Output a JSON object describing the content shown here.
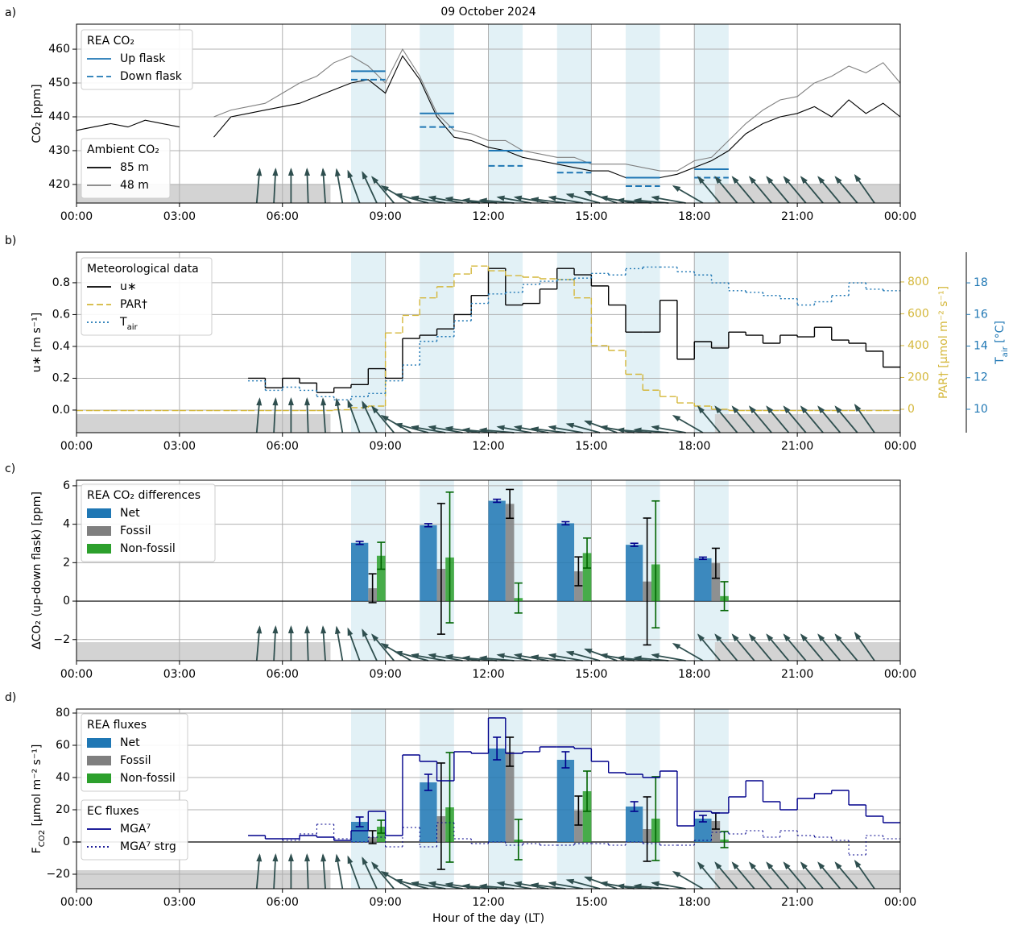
{
  "overlay": {
    "periods": [
      [
        8,
        9
      ],
      [
        10,
        11
      ],
      [
        12,
        13
      ],
      [
        14,
        15
      ],
      [
        16,
        17
      ],
      [
        18,
        19
      ]
    ],
    "night": [
      [
        0,
        7.4
      ],
      [
        18.6,
        24
      ]
    ],
    "wind": {
      "x": [
        5.25,
        5.75,
        6.25,
        6.75,
        7.25,
        7.75,
        8.25,
        8.75,
        9.25,
        9.75,
        10.25,
        10.75,
        11.25,
        11.75,
        12.25,
        12.75,
        13.25,
        13.75,
        14.25,
        14.75,
        15.25,
        15.75,
        16.25,
        16.75,
        17.25,
        17.75,
        18.25,
        18.75,
        19.25,
        19.75,
        20.25,
        20.75,
        21.25,
        21.75,
        22.25,
        22.75,
        23.25
      ],
      "direction": [
        185,
        183,
        180,
        178,
        176,
        170,
        160,
        155,
        140,
        120,
        105,
        100,
        100,
        98,
        95,
        95,
        100,
        100,
        97,
        100,
        105,
        110,
        100,
        95,
        95,
        100,
        120,
        140,
        140,
        140,
        140,
        140,
        140,
        140,
        140,
        140,
        145
      ]
    }
  },
  "chart_data": [
    {
      "type": "line",
      "title": "09 October 2024",
      "label": "a)",
      "ylabel": "CO₂ [ppm]",
      "xlim": [
        0,
        24
      ],
      "xticks": [
        {
          "value": 0,
          "label": "00:00"
        },
        {
          "value": 3,
          "label": "03:00"
        },
        {
          "value": 6,
          "label": "06:00"
        },
        {
          "value": 9,
          "label": "09:00"
        },
        {
          "value": 12,
          "label": "12:00"
        },
        {
          "value": 15,
          "label": "15:00"
        },
        {
          "value": 18,
          "label": "18:00"
        },
        {
          "value": 21,
          "label": "21:00"
        },
        {
          "value": 24,
          "label": "00:00"
        }
      ],
      "ylim": [
        414.5,
        467.4
      ],
      "yticks": [
        420,
        430,
        440,
        450,
        460
      ],
      "grid": true,
      "x": [
        0,
        0.5,
        1,
        1.5,
        2,
        2.5,
        3,
        3.5,
        4,
        4.5,
        5,
        5.5,
        6,
        6.5,
        7,
        7.5,
        8,
        8.5,
        9,
        9.5,
        10,
        10.5,
        11,
        11.5,
        12,
        12.5,
        13,
        13.5,
        14,
        14.5,
        15,
        15.5,
        16,
        16.5,
        17,
        17.5,
        18,
        18.5,
        19,
        19.5,
        20,
        20.5,
        21,
        21.5,
        22,
        22.5,
        23,
        23.5,
        24
      ],
      "flask_legend_title": "REA CO₂",
      "flask_series": [
        {
          "name": "Up flask",
          "color": "#1f77b4",
          "style": "flask",
          "dash": "solid",
          "values": [
            453.5,
            441,
            430,
            426.5,
            422,
            424.5
          ]
        },
        {
          "name": "Down flask",
          "color": "#1f77b4",
          "style": "flask",
          "dash": "dashed",
          "values": [
            451,
            437,
            425.5,
            423.5,
            419.5,
            422
          ]
        }
      ],
      "legend_title": "Ambient CO₂",
      "series": [
        {
          "name": "85 m",
          "color": "#000000",
          "style": "line",
          "values": [
            436,
            437,
            438,
            437,
            439,
            438,
            437,
            null,
            434,
            440,
            441,
            442,
            443,
            444,
            446,
            448,
            450,
            451,
            447,
            458,
            451,
            440,
            434,
            433,
            431,
            430,
            428,
            427,
            426,
            425,
            424,
            424,
            422,
            422,
            422,
            423,
            425,
            427,
            430,
            435,
            438,
            440,
            441,
            443,
            440,
            445,
            441,
            444,
            440
          ]
        },
        {
          "name": "48 m",
          "color": "#808080",
          "style": "line",
          "values": [
            null,
            null,
            null,
            null,
            null,
            null,
            null,
            null,
            440,
            442,
            443,
            444,
            447,
            450,
            452,
            456,
            458,
            455,
            450,
            460,
            452,
            441,
            436,
            435,
            433,
            433,
            430,
            429,
            428,
            428,
            426,
            426,
            426,
            425,
            424,
            424,
            427,
            428,
            433,
            438,
            442,
            445,
            446,
            450,
            452,
            455,
            453,
            456,
            450
          ]
        }
      ]
    },
    {
      "type": "step",
      "label": "b)",
      "ylabel": "u∗ [m s⁻¹]",
      "y2label": "PAR† [µmol m⁻² s⁻¹]",
      "y3label": [
        "T",
        "air",
        " [°C]"
      ],
      "xlim": [
        0,
        24
      ],
      "xticks": [
        {
          "value": 0,
          "label": "00:00"
        },
        {
          "value": 3,
          "label": "03:00"
        },
        {
          "value": 6,
          "label": "06:00"
        },
        {
          "value": 9,
          "label": "09:00"
        },
        {
          "value": 12,
          "label": "12:00"
        },
        {
          "value": 15,
          "label": "15:00"
        },
        {
          "value": 18,
          "label": "18:00"
        },
        {
          "value": 21,
          "label": "21:00"
        },
        {
          "value": 24,
          "label": "00:00"
        }
      ],
      "ylim": [
        -0.142,
        0.992
      ],
      "yticks": [
        {
          "value": 0,
          "label": "0.0"
        },
        0.2,
        0.4,
        0.6,
        0.8
      ],
      "grid": true,
      "y2lim": [
        -147,
        987
      ],
      "y2ticks": [
        0,
        200,
        400,
        600,
        800
      ],
      "y3lim": [
        8.52,
        19.94
      ],
      "y3ticks": [
        10,
        12,
        14,
        16,
        18
      ],
      "legend_title": "Meteorological data",
      "series": [
        {
          "name": "u∗",
          "color": "#000000",
          "style": "step",
          "dash": "solid",
          "axis": "y",
          "bins": [
            5,
            5.5,
            6,
            6.5,
            7,
            7.5,
            8,
            8.5,
            9,
            9.5,
            10,
            10.5,
            11,
            11.5,
            12,
            12.5,
            13,
            13.5,
            14,
            14.5,
            15,
            15.5,
            16,
            16.5,
            17,
            17.5,
            18,
            18.5,
            19,
            19.5,
            20,
            20.5,
            21,
            21.5,
            22,
            22.5,
            23,
            23.5,
            24
          ],
          "values": [
            0.2,
            0.14,
            0.2,
            0.17,
            0.11,
            0.14,
            0.16,
            0.26,
            0.2,
            0.45,
            0.47,
            0.51,
            0.6,
            0.72,
            0.89,
            0.66,
            0.67,
            0.76,
            0.89,
            0.85,
            0.78,
            0.66,
            0.49,
            0.49,
            0.69,
            0.32,
            0.43,
            0.39,
            0.49,
            0.47,
            0.42,
            0.47,
            0.46,
            0.52,
            0.44,
            0.42,
            0.37,
            0.27
          ]
        },
        {
          "name": "PAR†",
          "color": "#d4b73a",
          "style": "step",
          "dash": "dashed",
          "axis": "y2",
          "bins": [
            0,
            0.5,
            1,
            1.5,
            2,
            2.5,
            3,
            3.5,
            4,
            4.5,
            5,
            5.5,
            6,
            6.5,
            7,
            7.5,
            8,
            8.5,
            9,
            9.5,
            10,
            10.5,
            11,
            11.5,
            12,
            12.5,
            13,
            13.5,
            14,
            14.5,
            15,
            15.5,
            16,
            16.5,
            17,
            17.5,
            18,
            18.5,
            19,
            19.5,
            20,
            20.5,
            21,
            21.5,
            22,
            22.5,
            23,
            23.5,
            24
          ],
          "values": [
            -8,
            -8,
            -8,
            -8,
            -8,
            -8,
            -8,
            -8,
            -8,
            -8,
            -8,
            -8,
            -8,
            -8,
            -8,
            -3,
            10,
            20,
            480,
            590,
            700,
            770,
            850,
            900,
            870,
            840,
            830,
            820,
            815,
            700,
            400,
            370,
            220,
            120,
            80,
            40,
            20,
            0,
            -8,
            -8,
            -8,
            -8,
            -8,
            -8,
            -8,
            -8,
            -8,
            -8
          ]
        },
        {
          "name": [
            "T",
            "air"
          ],
          "color": "#1f77b4",
          "style": "step",
          "dash": "dotted",
          "axis": "y3",
          "bins": [
            5,
            5.5,
            6,
            6.5,
            7,
            7.5,
            8,
            8.5,
            9,
            9.5,
            10,
            10.5,
            11,
            11.5,
            12,
            12.5,
            13,
            13.5,
            14,
            14.5,
            15,
            15.5,
            16,
            16.5,
            17,
            17.5,
            18,
            18.5,
            19,
            19.5,
            20,
            20.5,
            21,
            21.5,
            22,
            22.5,
            23,
            23.5,
            24
          ],
          "values": [
            11.8,
            11.2,
            11.4,
            11.2,
            10.8,
            10.6,
            10.8,
            11.0,
            11.8,
            12.8,
            14.3,
            14.6,
            15.6,
            16.7,
            17.3,
            17.4,
            17.9,
            18.1,
            18.2,
            18.3,
            18.6,
            18.5,
            18.9,
            19.0,
            19.0,
            18.7,
            18.5,
            18.0,
            17.5,
            17.4,
            17.2,
            17.0,
            16.6,
            16.8,
            17.2,
            18.0,
            17.6,
            17.5
          ]
        }
      ]
    },
    {
      "type": "bar",
      "label": "c)",
      "ylabel": "ΔCO₂ (up-down flask) [ppm]",
      "xlim": [
        0,
        24
      ],
      "xticks": [
        {
          "value": 0,
          "label": "00:00"
        },
        {
          "value": 3,
          "label": "03:00"
        },
        {
          "value": 6,
          "label": "06:00"
        },
        {
          "value": 9,
          "label": "09:00"
        },
        {
          "value": 12,
          "label": "12:00"
        },
        {
          "value": 15,
          "label": "15:00"
        },
        {
          "value": 18,
          "label": "18:00"
        },
        {
          "value": 21,
          "label": "21:00"
        },
        {
          "value": 24,
          "label": "00:00"
        }
      ],
      "ylim": [
        -3.1,
        6.29
      ],
      "yticks": [
        {
          "value": -2,
          "label": "−2"
        },
        0,
        2,
        4,
        6
      ],
      "grid": true,
      "hline": 0,
      "legend_title": "REA CO₂ differences",
      "series": [
        {
          "name": "Net",
          "color": "#1f77b4",
          "error_color": "#00008b",
          "style": "bar",
          "values": [
            3.03,
            3.95,
            5.22,
            4.05,
            2.93,
            2.23
          ],
          "errors": [
            0.08,
            0.08,
            0.08,
            0.08,
            0.08,
            0.06
          ]
        },
        {
          "name": "Fossil",
          "color": "#7f7f7f",
          "error_color": "#000000",
          "style": "bar",
          "values": [
            0.67,
            1.68,
            5.06,
            1.55,
            1.02,
            1.97
          ],
          "errors": [
            0.75,
            3.4,
            0.75,
            0.75,
            3.3,
            0.78
          ]
        },
        {
          "name": "Non-fossil",
          "color": "#2ca02c",
          "error_color": "#006400",
          "style": "bar",
          "values": [
            2.36,
            2.27,
            0.16,
            2.5,
            1.91,
            0.26
          ],
          "errors": [
            0.7,
            3.4,
            0.78,
            0.78,
            3.3,
            0.75
          ]
        }
      ]
    },
    {
      "type": "bar",
      "label": "d)",
      "ylabel": [
        "F",
        "CO2",
        " [µmol m⁻² s⁻¹]"
      ],
      "xlabel": "Hour of the day (LT)",
      "xlim": [
        0,
        24
      ],
      "xticks": [
        {
          "value": 0,
          "label": "00:00"
        },
        {
          "value": 3,
          "label": "03:00"
        },
        {
          "value": 6,
          "label": "06:00"
        },
        {
          "value": 9,
          "label": "09:00"
        },
        {
          "value": 12,
          "label": "12:00"
        },
        {
          "value": 15,
          "label": "15:00"
        },
        {
          "value": 18,
          "label": "18:00"
        },
        {
          "value": 21,
          "label": "21:00"
        },
        {
          "value": 24,
          "label": "00:00"
        }
      ],
      "ylim": [
        -29,
        82.5
      ],
      "yticks": [
        {
          "value": -20,
          "label": "−20"
        },
        0,
        20,
        40,
        60,
        80
      ],
      "grid": true,
      "hline": 0,
      "legend_title": "REA fluxes",
      "series": [
        {
          "name": "Net",
          "color": "#1f77b4",
          "error_color": "#00008b",
          "style": "bar",
          "values": [
            12.5,
            37,
            58,
            51,
            22,
            14.5
          ],
          "errors": [
            3,
            5,
            7,
            5,
            3,
            2
          ]
        },
        {
          "name": "Fossil",
          "color": "#7f7f7f",
          "error_color": "#000000",
          "style": "bar",
          "values": [
            3,
            16,
            56,
            19.5,
            8,
            13
          ],
          "errors": [
            4,
            33,
            9,
            9,
            20,
            5
          ]
        },
        {
          "name": "Non-fossil",
          "color": "#2ca02c",
          "error_color": "#006400",
          "style": "bar",
          "values": [
            9.5,
            21.5,
            1.5,
            31.5,
            14.5,
            1.5
          ],
          "errors": [
            4,
            34,
            12.5,
            12.5,
            26,
            5
          ]
        }
      ],
      "ec_legend_title": "EC fluxes",
      "ec_series": [
        {
          "name": "MGA⁷",
          "color": "#00008b",
          "style": "step",
          "dash": "solid",
          "axis": "y",
          "bins": [
            5,
            5.5,
            6,
            6.5,
            7,
            7.5,
            8,
            8.5,
            9,
            9.5,
            10,
            10.5,
            11,
            11.5,
            12,
            12.5,
            13,
            13.5,
            14,
            14.5,
            15,
            15.5,
            16,
            16.5,
            17,
            17.5,
            18,
            18.5,
            19,
            19.5,
            20,
            20.5,
            21,
            21.5,
            22,
            22.5,
            23,
            23.5,
            24
          ],
          "values": [
            4,
            2,
            2,
            4,
            3,
            1,
            7,
            19,
            4,
            54,
            50,
            38,
            56,
            55,
            77,
            55,
            56,
            59,
            59,
            58,
            50,
            43,
            42,
            40,
            44,
            10,
            19,
            18,
            28,
            38,
            25,
            20,
            27,
            30,
            32,
            23,
            16,
            12
          ]
        },
        {
          "name": "MGA⁷ strg",
          "color": "#00008b",
          "style": "step",
          "dash": "dotted",
          "axis": "y",
          "bins": [
            5,
            5.5,
            6,
            6.5,
            7,
            7.5,
            8,
            8.5,
            9,
            9.5,
            10,
            10.5,
            11,
            11.5,
            12,
            12.5,
            13,
            13.5,
            14,
            14.5,
            15,
            15.5,
            16,
            16.5,
            17,
            17.5,
            18,
            18.5,
            19,
            19.5,
            20,
            20.5,
            21,
            21.5,
            22,
            22.5,
            23,
            23.5,
            24
          ],
          "values": [
            4,
            2,
            1,
            5,
            11,
            2,
            0,
            3,
            -3,
            9,
            -3,
            12,
            2,
            -1,
            0,
            -2,
            -1,
            -2,
            -2,
            -1,
            -1,
            -2,
            0,
            -1,
            -2,
            -2,
            1,
            6,
            5,
            7,
            3,
            7,
            4,
            3,
            1,
            -8,
            4,
            2
          ]
        }
      ]
    }
  ]
}
